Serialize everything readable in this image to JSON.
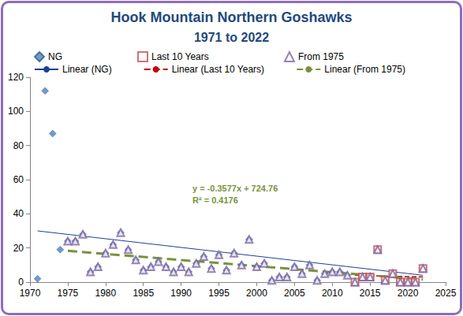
{
  "chart_data": {
    "type": "scatter",
    "title": "Hook Mountain Northern Goshawks",
    "subtitle": "1971 to 2022",
    "xlim": [
      1970,
      2025
    ],
    "xticks": [
      1970,
      1975,
      1980,
      1985,
      1990,
      1995,
      2000,
      2005,
      2010,
      2015,
      2020,
      2025
    ],
    "ylim": [
      0,
      120
    ],
    "yticks": [
      0,
      20,
      40,
      60,
      80,
      100,
      120
    ],
    "grid": false,
    "legend": "top",
    "series": [
      {
        "name": "NG",
        "type": "scatter",
        "marker": "diamond",
        "color": "#4f81bd",
        "x": [
          1971,
          1972,
          1973,
          1974,
          1975,
          1976,
          1977,
          1978,
          1979,
          1980,
          1981,
          1982,
          1983,
          1984,
          1985,
          1986,
          1987,
          1988,
          1989,
          1990,
          1991,
          1992,
          1993,
          1994,
          1995,
          1996,
          1997,
          1998,
          1999,
          2000,
          2001,
          2002,
          2003,
          2004,
          2005,
          2006,
          2007,
          2008,
          2009,
          2010,
          2011,
          2012,
          2013,
          2014,
          2015,
          2016,
          2017,
          2018,
          2019,
          2020,
          2021,
          2022
        ],
        "values": [
          2,
          112,
          87,
          19,
          24,
          24,
          28,
          6,
          9,
          17,
          22,
          29,
          19,
          13,
          7,
          9,
          12,
          9,
          6,
          9,
          6,
          11,
          15,
          8,
          16,
          7,
          17,
          10,
          25,
          9,
          11,
          1,
          3,
          3,
          9,
          5,
          10,
          1,
          5,
          6,
          6,
          4,
          0,
          3,
          3,
          19,
          1,
          5,
          0,
          0,
          0,
          8
        ]
      },
      {
        "name": "Last 10 Years",
        "type": "scatter",
        "marker": "open_square",
        "color": "#c0504d",
        "x": [
          2013,
          2014,
          2015,
          2016,
          2017,
          2018,
          2019,
          2020,
          2021,
          2022
        ],
        "values": [
          0,
          3,
          3,
          19,
          1,
          5,
          0,
          0,
          0,
          8
        ]
      },
      {
        "name": "From 1975",
        "type": "scatter",
        "marker": "open_triangle",
        "color": "#8064a2",
        "x": [
          1975,
          1976,
          1977,
          1978,
          1979,
          1980,
          1981,
          1982,
          1983,
          1984,
          1985,
          1986,
          1987,
          1988,
          1989,
          1990,
          1991,
          1992,
          1993,
          1994,
          1995,
          1996,
          1997,
          1998,
          1999,
          2000,
          2001,
          2002,
          2003,
          2004,
          2005,
          2006,
          2007,
          2008,
          2009,
          2010,
          2011,
          2012,
          2013,
          2014,
          2015,
          2016,
          2017,
          2018,
          2019,
          2020,
          2021,
          2022
        ],
        "values": [
          24,
          24,
          28,
          6,
          9,
          17,
          22,
          29,
          19,
          13,
          7,
          9,
          12,
          9,
          6,
          9,
          6,
          11,
          15,
          8,
          16,
          7,
          17,
          10,
          25,
          9,
          11,
          1,
          3,
          3,
          9,
          5,
          10,
          1,
          5,
          6,
          6,
          4,
          0,
          3,
          3,
          19,
          1,
          5,
          0,
          0,
          0,
          8
        ]
      },
      {
        "name": "Linear (NG)",
        "type": "line",
        "line_style": "solid",
        "color": "#1f3f8f",
        "x": [
          1971,
          2022
        ],
        "values": [
          30,
          4
        ]
      },
      {
        "name": "Linear (Last 10 Years)",
        "type": "line",
        "line_style": "dashed",
        "color": "#c00000",
        "x": [
          2013,
          2022
        ],
        "values": [
          4,
          3
        ]
      },
      {
        "name": "Linear (From 1975)",
        "type": "line",
        "line_style": "dashed",
        "color": "#77933c",
        "x": [
          1975,
          2022
        ],
        "values": [
          18.3,
          1.5
        ]
      }
    ],
    "annotations": [
      {
        "text": "y = -0.3577x + 724.76",
        "color": "#77933c"
      },
      {
        "text": "R² = 0.4176",
        "color": "#77933c"
      }
    ]
  }
}
